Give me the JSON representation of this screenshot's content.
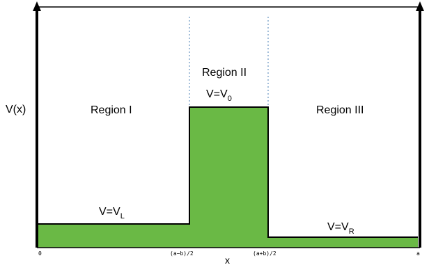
{
  "axis": {
    "y_label": "V(x)",
    "x_label": "x",
    "ticks": [
      "0",
      "(a−b)/2",
      "(a+b)/2",
      "a"
    ]
  },
  "regions": {
    "left_name": "Region I",
    "middle_name": "Region II",
    "right_name": "Region III"
  },
  "potentials": {
    "left": {
      "prefix": "V=V",
      "sub": "L"
    },
    "middle": {
      "prefix": "V=V",
      "sub": "0"
    },
    "right": {
      "prefix": "V=V",
      "sub": "R"
    }
  },
  "colors": {
    "fill": "#6ab945",
    "outline": "#000000",
    "divider": "#4a7fb5"
  }
}
